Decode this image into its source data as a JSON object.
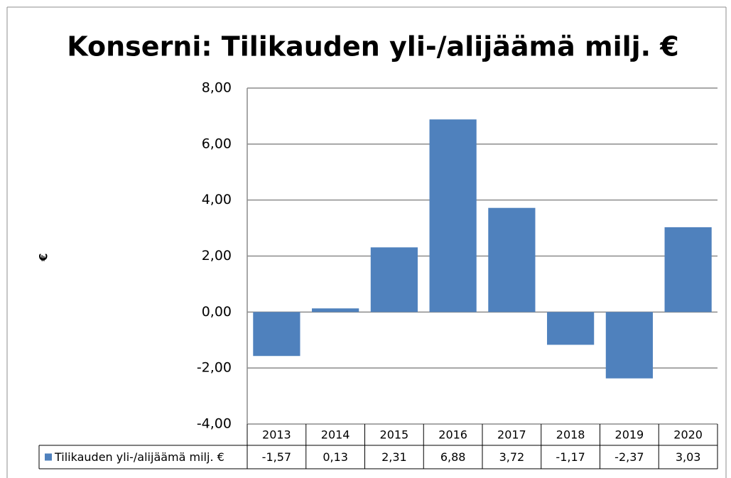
{
  "chart_data": {
    "type": "bar",
    "title": "Konserni: Tilikauden yli-/alijäämä milj. €",
    "y_label": "€",
    "categories": [
      "2013",
      "2014",
      "2015",
      "2016",
      "2017",
      "2018",
      "2019",
      "2020"
    ],
    "series": [
      {
        "name": "Tilikauden yli-/alijäämä milj. €",
        "color": "#4f81bd",
        "values": [
          -1.57,
          0.13,
          2.31,
          6.88,
          3.72,
          -1.17,
          -2.37,
          3.03
        ],
        "value_labels": [
          "-1,57",
          "0,13",
          "2,31",
          "6,88",
          "3,72",
          "-1,17",
          "-2,37",
          "3,03"
        ]
      }
    ],
    "ylim": [
      -4,
      8
    ],
    "yticks": [
      {
        "value": -4,
        "label": "-4,00"
      },
      {
        "value": -2,
        "label": "-2,00"
      },
      {
        "value": 0,
        "label": "0,00"
      },
      {
        "value": 2,
        "label": "2,00"
      },
      {
        "value": 4,
        "label": "4,00"
      },
      {
        "value": 6,
        "label": "6,00"
      },
      {
        "value": 8,
        "label": "8,00"
      }
    ],
    "grid": true
  }
}
